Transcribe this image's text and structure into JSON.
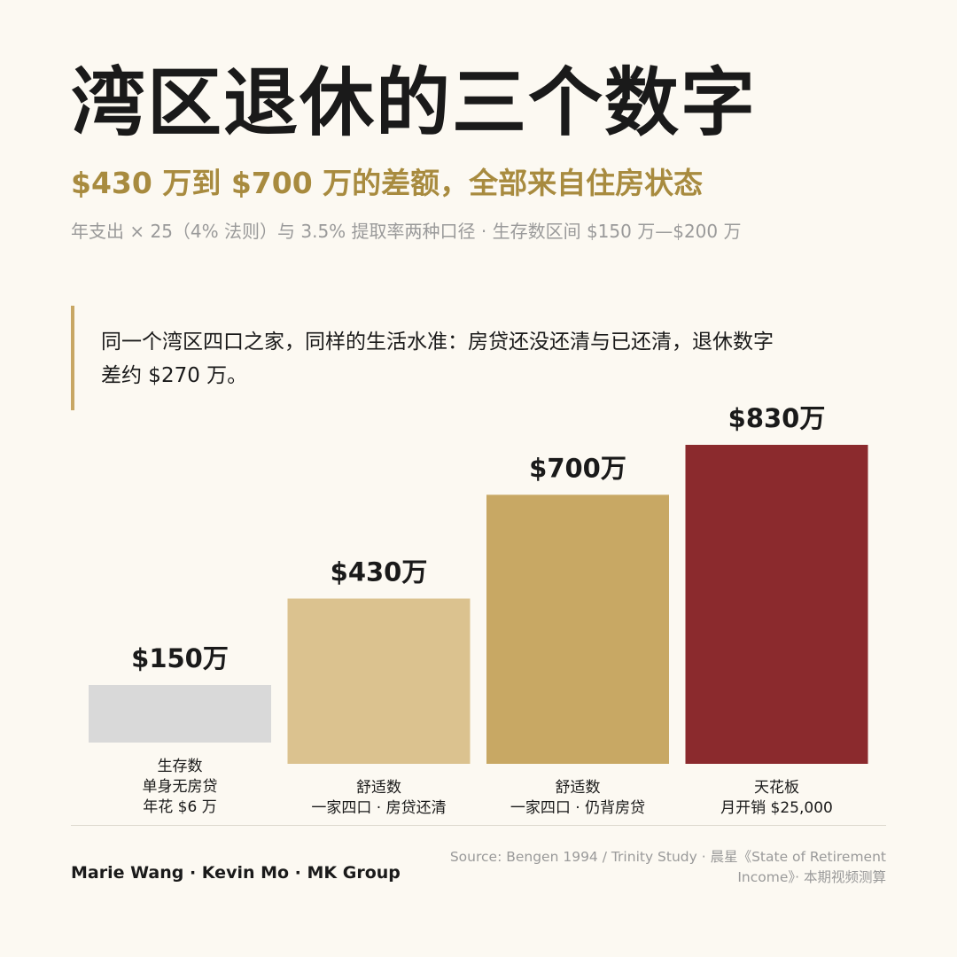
{
  "header": {
    "title": "湾区退休的三个数字",
    "subtitle": "$430 万到 $700 万的差额，全部来自住房状态",
    "note": "年支出 × 25（4% 法则）与 3.5% 提取率两种口径 · 生存数区间 $150 万—$200 万"
  },
  "quote": {
    "line1": "同一个湾区四口之家，同样的生活水准：房贷还没还清与已还清，退休数字",
    "line2": "差约 $270 万。"
  },
  "chart_data": {
    "type": "bar",
    "unit": "万",
    "categories": [
      [
        "生存数",
        "单身无房贷",
        "年花 $6 万"
      ],
      [
        "舒适数",
        "一家四口 · 房贷还清"
      ],
      [
        "舒适数",
        "一家四口 · 仍背房贷"
      ],
      [
        "天花板",
        "月开销 $25,000"
      ]
    ],
    "values": [
      150,
      430,
      700,
      830
    ],
    "value_labels": [
      "$150万",
      "$430万",
      "$700万",
      "$830万"
    ],
    "colors": [
      "#d9d9d9",
      "#dbc28f",
      "#c8a864",
      "#8b2a2d"
    ],
    "ylim": [
      0,
      830
    ]
  },
  "footer": {
    "authors": "Marie Wang · Kevin Mo · MK Group",
    "source_line1": "Source: Bengen 1994 / Trinity Study · 晨星《State of Retirement",
    "source_line2": "Income》· 本期视频测算"
  }
}
